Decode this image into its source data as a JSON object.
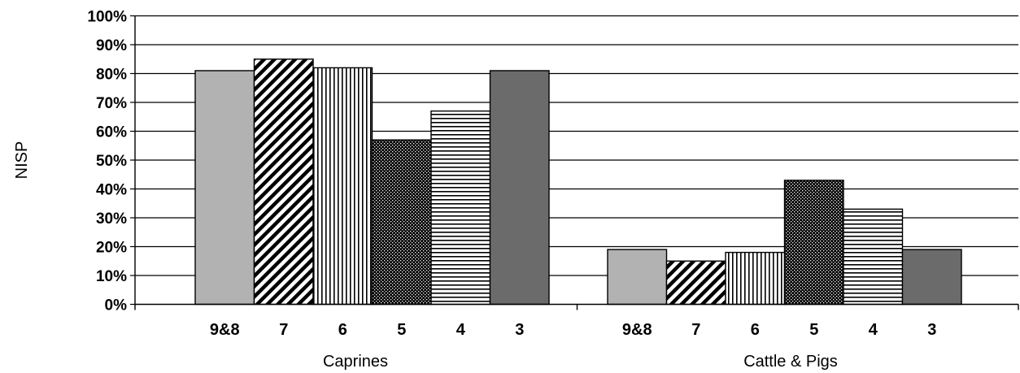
{
  "chart_data": {
    "type": "bar",
    "ylabel": "NISP",
    "y_ticks": [
      "0%",
      "10%",
      "20%",
      "30%",
      "40%",
      "50%",
      "60%",
      "70%",
      "80%",
      "90%",
      "100%"
    ],
    "ylim": [
      0,
      100
    ],
    "grid": true,
    "legend": "none",
    "groups": [
      {
        "name": "Caprines",
        "categories": [
          "9&8",
          "7",
          "6",
          "5",
          "4",
          "3"
        ],
        "values": [
          81,
          85,
          82,
          57,
          67,
          81
        ]
      },
      {
        "name": "Cattle & Pigs",
        "categories": [
          "9&8",
          "7",
          "6",
          "5",
          "4",
          "3"
        ],
        "values": [
          19,
          15,
          18,
          43,
          33,
          19
        ]
      }
    ],
    "bar_styles": [
      "light-gray-solid",
      "diagonal-stripes",
      "vertical-stripes",
      "dense-dots",
      "horizontal-stripes",
      "dark-gray-solid"
    ],
    "colors": {
      "light_gray": "#b2b2b2",
      "dark_gray": "#6b6b6b",
      "ink": "#000000",
      "background": "#ffffff"
    }
  }
}
